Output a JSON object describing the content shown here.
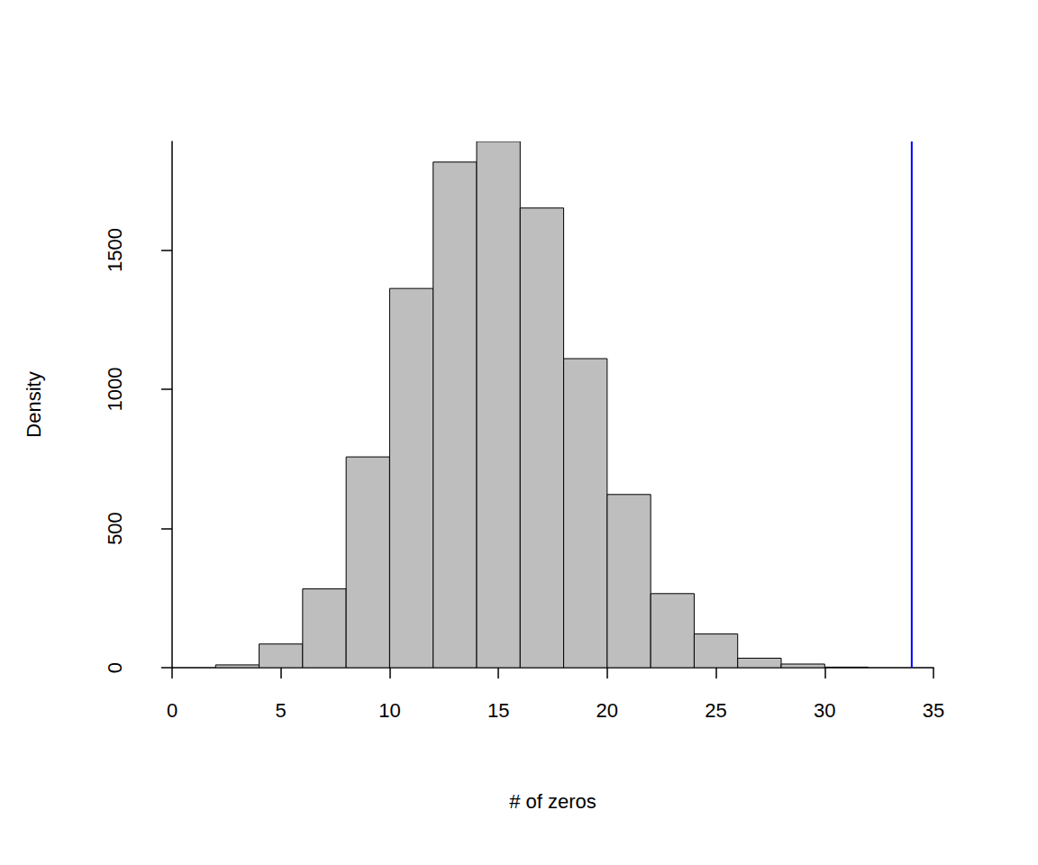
{
  "chart_data": {
    "type": "histogram",
    "xlabel": "# of zeros",
    "ylabel": "Density",
    "bins": [
      2,
      4,
      6,
      8,
      10,
      12,
      14,
      16,
      18,
      20,
      22,
      24,
      26,
      28,
      30,
      32
    ],
    "values": [
      10,
      85,
      283,
      757,
      1362,
      1816,
      1890,
      1651,
      1110,
      622,
      266,
      121,
      34,
      13,
      2
    ],
    "color": "#bebebe",
    "xlim": [
      0,
      35
    ],
    "xticks": [
      0,
      5,
      10,
      15,
      20,
      25,
      30,
      35
    ],
    "ylim": [
      0,
      1890
    ],
    "yticks": [
      0,
      500,
      1000,
      1500
    ],
    "grid": false,
    "vline": {
      "x": 34,
      "color": "#0000ff"
    }
  }
}
